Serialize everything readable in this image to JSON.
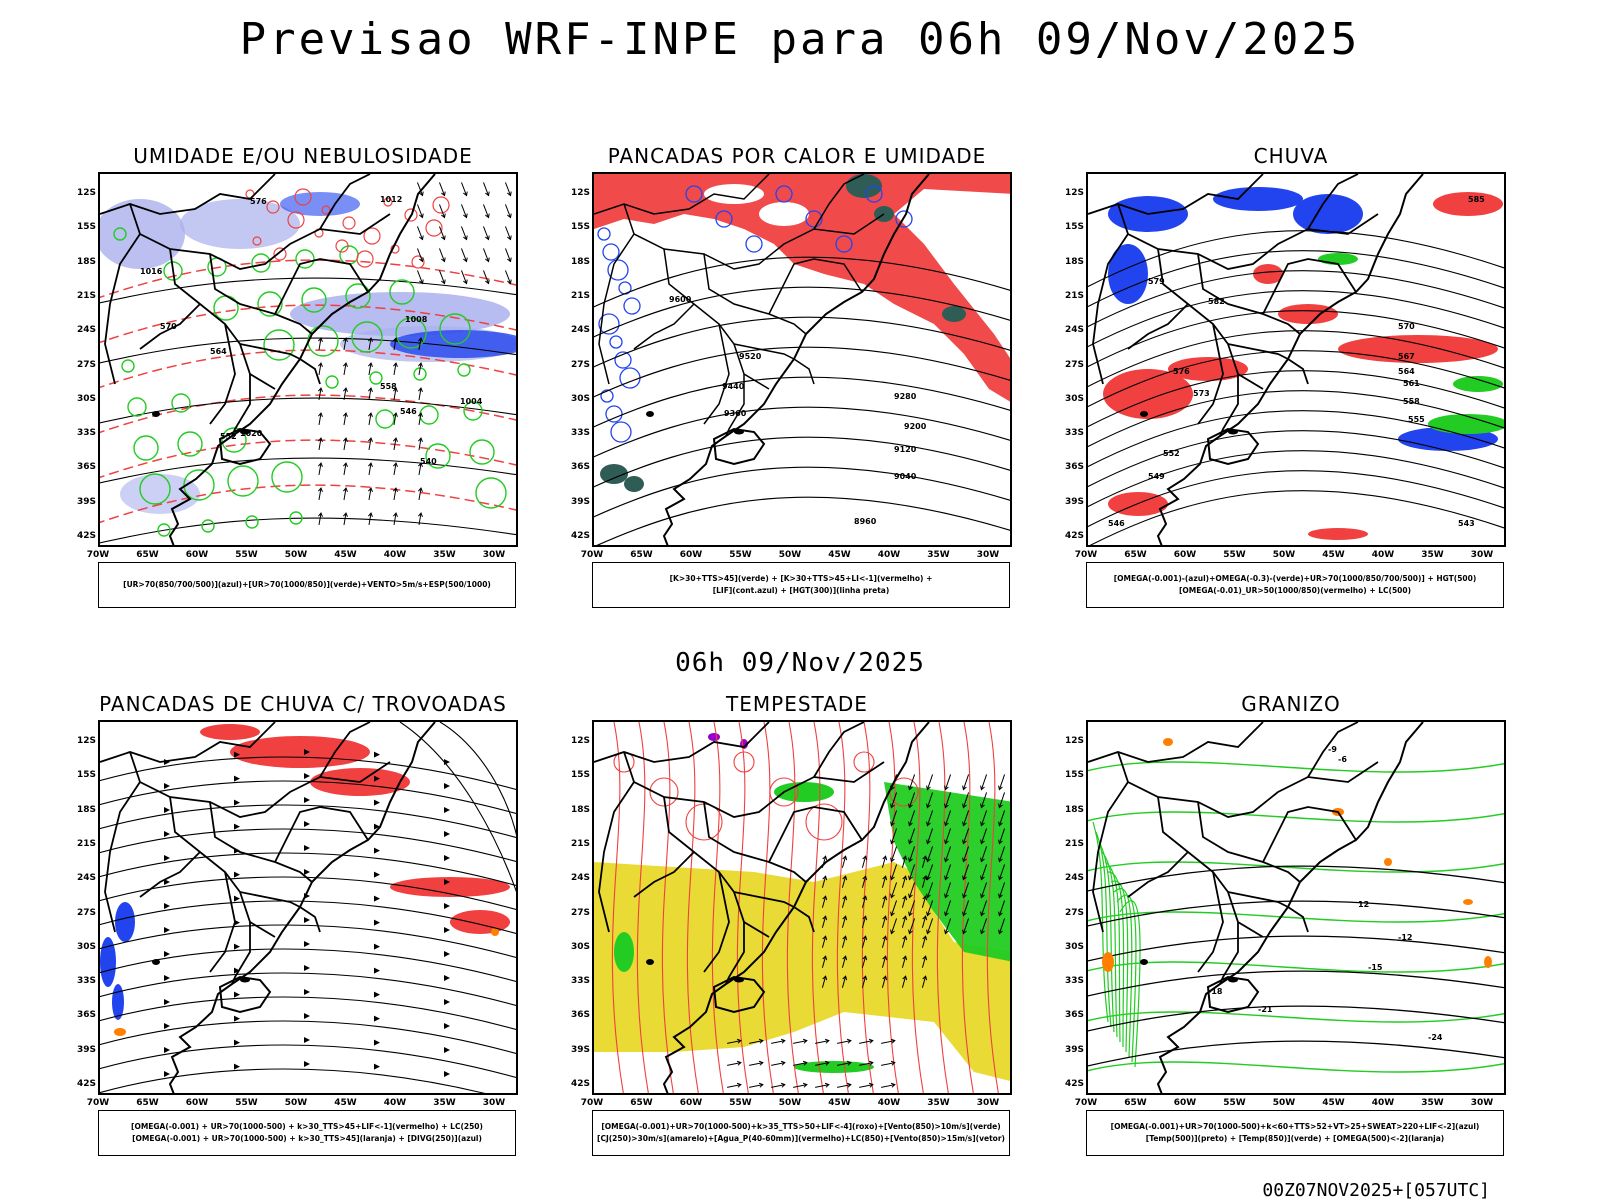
{
  "header": {
    "title": "Previsao WRF-INPE  para 06h 09/Nov/2025",
    "mid_title": "06h 09/Nov/2025",
    "footer": "00Z07NOV2025+[057UTC]"
  },
  "axes": {
    "lat_labels": [
      "12S",
      "15S",
      "18S",
      "21S",
      "24S",
      "27S",
      "30S",
      "33S",
      "36S",
      "39S",
      "42S"
    ],
    "lon_labels": [
      "70W",
      "65W",
      "60W",
      "55W",
      "50W",
      "45W",
      "40W",
      "35W",
      "30W"
    ]
  },
  "colors": {
    "red": "#f04040",
    "green": "#22cc22",
    "blue": "#2244ee",
    "lavender": "#aab0ee",
    "purple": "#9900cc",
    "orange": "#ff8000",
    "yellow": "#e8d82a",
    "darkteal": "#2f5c55"
  },
  "panels": [
    {
      "title": "UMIDADE E/OU NEBULOSIDADE",
      "legend": [
        "[UR>70(850/700/500)](azul)+[UR>70(1000/850)](verde)+VENTO>5m/s+ESP(500/1000)"
      ],
      "contour_labels": [
        "1012",
        "1016",
        "1020",
        "1008",
        "1004",
        "576",
        "570",
        "564",
        "558",
        "552",
        "546",
        "540"
      ]
    },
    {
      "title": "PANCADAS POR CALOR E UMIDADE",
      "legend": [
        "[K>30+TTS>45](verde) + [K>30+TTS>45+LI<-1](vermelho) +",
        "[LIF](cont.azul) + [HGT(300)](linha preta)"
      ],
      "contour_labels": [
        "9600",
        "9520",
        "9440",
        "9360",
        "9280",
        "9200",
        "9120",
        "9040",
        "8960"
      ]
    },
    {
      "title": "CHUVA",
      "legend": [
        "[OMEGA(-0.001)-(azul)+OMEGA(-0.3)-(verde)+UR>70(1000/850/700/500)] + HGT(500)",
        "[OMEGA(-0.01)_UR>50(1000/850)(vermelho) + LC(500)"
      ],
      "contour_labels": [
        "585",
        "582",
        "579",
        "576",
        "573",
        "570",
        "567",
        "564",
        "561",
        "558",
        "555",
        "552",
        "549",
        "546",
        "543"
      ]
    },
    {
      "title": "PANCADAS DE CHUVA C/ TROVOADAS",
      "legend": [
        "[OMEGA(-0.001) + UR>70(1000-500) + k>30_TTS>45+LIF<-1](vermelho) + LC(250)",
        "[OMEGA(-0.001) + UR>70(1000-500) + k>30_TTS>45](laranja) + [DIVG(250)](azul)"
      ],
      "contour_labels": []
    },
    {
      "title": "TEMPESTADE",
      "legend": [
        "[OMEGA(-0.001)+UR>70(1000-500)+k>35_TTS>50+LIF<-4](roxo)+[Vento(850)>10m/s](verde)",
        "[CJ(250)>30m/s](amarelo)+[Agua_P(40-60mm)](vermelho)+LC(850)+[Vento(850)>15m/s](vetor)"
      ],
      "contour_labels": []
    },
    {
      "title": "GRANIZO",
      "legend": [
        "[OMEGA(-0.001)+UR>70(1000-500)+k<60+TTS>52+VT>25+SWEAT>220+LIF<-2](azul)",
        "[Temp(500)](preto) + [Temp(850)](verde) + [OMEGA(500)<-2](laranja)"
      ],
      "contour_labels": [
        "-9",
        "-6",
        "12",
        "-12",
        "-15",
        "-18",
        "-21",
        "-24"
      ]
    }
  ]
}
